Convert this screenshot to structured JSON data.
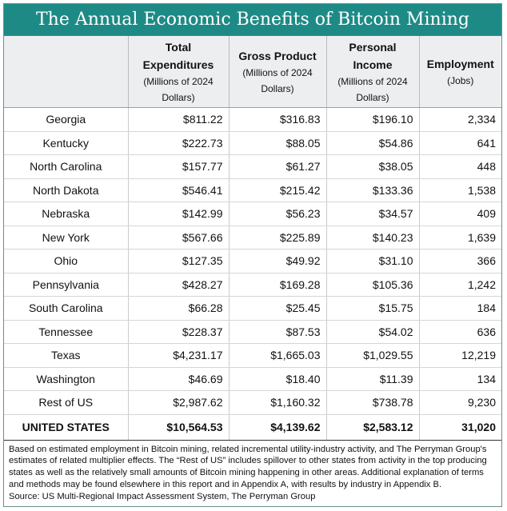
{
  "title": "The Annual Economic Benefits of Bitcoin Mining",
  "colors": {
    "header_bar": "#1e8a86",
    "header_text": "#ffffff",
    "column_header_bg": "#edeef0"
  },
  "columns": [
    {
      "main": "",
      "sub": ""
    },
    {
      "main": "Total Expenditures",
      "sub": "(Millions of 2024 Dollars)"
    },
    {
      "main": "Gross Product",
      "sub": "(Millions of 2024 Dollars)"
    },
    {
      "main": "Personal Income",
      "sub": "(Millions of 2024 Dollars)"
    },
    {
      "main": "Employment",
      "sub": "(Jobs)"
    }
  ],
  "rows": [
    [
      "Georgia",
      "$811.22",
      "$316.83",
      "$196.10",
      "2,334"
    ],
    [
      "Kentucky",
      "$222.73",
      "$88.05",
      "$54.86",
      "641"
    ],
    [
      "North Carolina",
      "$157.77",
      "$61.27",
      "$38.05",
      "448"
    ],
    [
      "North Dakota",
      "$546.41",
      "$215.42",
      "$133.36",
      "1,538"
    ],
    [
      "Nebraska",
      "$142.99",
      "$56.23",
      "$34.57",
      "409"
    ],
    [
      "New York",
      "$567.66",
      "$225.89",
      "$140.23",
      "1,639"
    ],
    [
      "Ohio",
      "$127.35",
      "$49.92",
      "$31.10",
      "366"
    ],
    [
      "Pennsylvania",
      "$428.27",
      "$169.28",
      "$105.36",
      "1,242"
    ],
    [
      "South Carolina",
      "$66.28",
      "$25.45",
      "$15.75",
      "184"
    ],
    [
      "Tennessee",
      "$228.37",
      "$87.53",
      "$54.02",
      "636"
    ],
    [
      "Texas",
      "$4,231.17",
      "$1,665.03",
      "$1,029.55",
      "12,219"
    ],
    [
      "Washington",
      "$46.69",
      "$18.40",
      "$11.39",
      "134"
    ],
    [
      "Rest of US",
      "$2,987.62",
      "$1,160.32",
      "$738.78",
      "9,230"
    ]
  ],
  "total": [
    "UNITED STATES",
    "$10,564.53",
    "$4,139.62",
    "$2,583.12",
    "31,020"
  ],
  "note": "Based on estimated employment in Bitcoin mining, related incremental utility-industry activity, and The Perryman Group's estimates of related multiplier effects. The “Rest of US” includes spillover to other states from activity in the top producing states as well as the relatively small amounts of Bitcoin mining happening in other areas. Additional explanation of terms and methods may be found elsewhere in this report and in Appendix A, with results by industry in Appendix B.",
  "source": "Source: US Multi-Regional Impact Assessment System, The Perryman Group"
}
